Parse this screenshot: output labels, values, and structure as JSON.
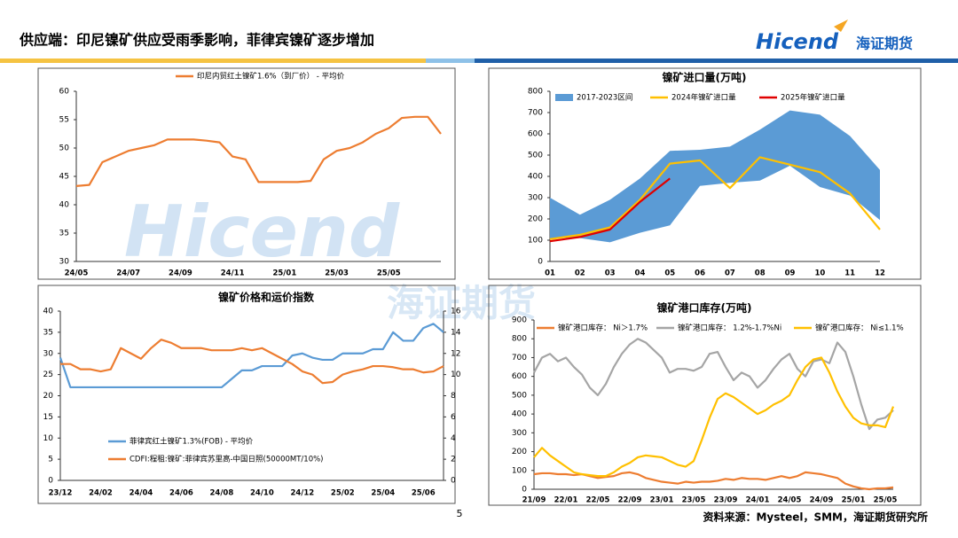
{
  "header": {
    "title": "供应端：印尼镍矿供应受雨季影响，菲律宾镍矿逐步增加"
  },
  "logo": {
    "brand": "Hicend",
    "name": "海证期货"
  },
  "page": "5",
  "source": "资料来源：Mysteel，SMM，海证期货研究所",
  "chart_data": [
    {
      "type": "line",
      "categories": [
        "24/05",
        null,
        null,
        null,
        "24/07",
        null,
        null,
        null,
        "24/09",
        null,
        null,
        null,
        "24/11",
        null,
        null,
        null,
        "25/01",
        null,
        null,
        null,
        "25/03",
        null,
        null,
        null,
        "25/05",
        null,
        null,
        null,
        null
      ],
      "series": [
        {
          "name": "印尼内贸红土镍矿1.6%（到厂价） - 平均价",
          "color": "#ED7D31",
          "values": [
            43.3,
            43.5,
            47.5,
            48.5,
            49.5,
            50,
            50.5,
            51.5,
            51.5,
            51.5,
            51.3,
            51,
            48.5,
            48,
            44,
            44,
            44,
            44,
            44.2,
            48,
            49.5,
            50,
            51,
            52.5,
            53.5,
            55.3,
            55.5,
            55.5,
            52.5
          ]
        }
      ],
      "ylim": [
        30,
        60
      ],
      "yticks": [
        30,
        35,
        40,
        45,
        50,
        55,
        60
      ]
    },
    {
      "type": "line",
      "title": "镍矿进口量(万吨)",
      "categories": [
        "01",
        "02",
        "03",
        "04",
        "05",
        "06",
        "07",
        "08",
        "09",
        "10",
        "11",
        "12"
      ],
      "series": [
        {
          "name": "2017-2023区间",
          "color": "#5B9BD5",
          "low": [
            110,
            110,
            90,
            135,
            170,
            355,
            370,
            380,
            450,
            350,
            310,
            195
          ],
          "high": [
            300,
            220,
            290,
            390,
            520,
            525,
            540,
            620,
            710,
            690,
            590,
            430
          ]
        },
        {
          "name": "2024年镍矿进口量",
          "color": "#FFC000",
          "values": [
            105,
            125,
            160,
            290,
            460,
            475,
            345,
            490,
            455,
            420,
            320,
            150
          ]
        },
        {
          "name": "2025年镍矿进口量",
          "color": "#E00000",
          "values": [
            95,
            115,
            150,
            280,
            390,
            null,
            null,
            null,
            null,
            null,
            null,
            null
          ]
        }
      ],
      "ylim": [
        0,
        800
      ],
      "yticks": [
        0,
        100,
        200,
        300,
        400,
        500,
        600,
        700,
        800
      ]
    },
    {
      "type": "line",
      "title": "镍矿价格和运价指数",
      "categories": [
        "23/12",
        null,
        null,
        null,
        "24/02",
        null,
        null,
        null,
        "24/04",
        null,
        null,
        null,
        "24/06",
        null,
        null,
        null,
        "24/08",
        null,
        null,
        null,
        "24/10",
        null,
        null,
        null,
        "24/12",
        null,
        null,
        null,
        "25/02",
        null,
        null,
        null,
        "25/04",
        null,
        null,
        null,
        "25/06",
        null,
        null
      ],
      "series": [
        {
          "name": "菲律宾红土镍矿1.3%(FOB) - 平均价",
          "color": "#5B9BD5",
          "values": [
            29,
            22,
            22,
            22,
            22,
            22,
            22,
            22,
            22,
            22,
            22,
            22,
            22,
            22,
            22,
            22,
            22,
            24,
            26,
            26,
            27,
            27,
            27,
            29.5,
            30,
            29,
            28.5,
            28.5,
            30,
            30,
            30,
            31,
            31,
            35,
            33,
            33,
            36,
            37,
            35
          ]
        },
        {
          "name": "CDFI:程租:镍矿:菲律宾苏里高-中国日照(50000MT/10%)",
          "color": "#ED7D31",
          "axis": "y2",
          "values": [
            11,
            11,
            10.5,
            10.5,
            10.3,
            10.5,
            12.5,
            12,
            11.5,
            12.5,
            13.3,
            13,
            12.5,
            12.5,
            12.5,
            12.3,
            12.3,
            12.3,
            12.5,
            12.3,
            12.5,
            12,
            11.5,
            11,
            10.3,
            10,
            9.2,
            9.3,
            10,
            10.3,
            10.5,
            10.8,
            10.8,
            10.7,
            10.5,
            10.5,
            10.2,
            10.3,
            10.8
          ]
        }
      ],
      "ylim": [
        0,
        40
      ],
      "yticks": [
        0,
        5,
        10,
        15,
        20,
        25,
        30,
        35,
        40
      ],
      "y2lim": [
        0,
        16
      ],
      "y2ticks": [
        0,
        2,
        4,
        6,
        8,
        10,
        12,
        14,
        16
      ]
    },
    {
      "type": "line",
      "title": "镍矿港口库存(万吨)",
      "categories": [
        "21/09",
        null,
        null,
        null,
        "22/01",
        null,
        null,
        null,
        "22/05",
        null,
        null,
        null,
        "22/09",
        null,
        null,
        null,
        "23/01",
        null,
        null,
        null,
        "23/05",
        null,
        null,
        null,
        "23/09",
        null,
        null,
        null,
        "24/01",
        null,
        null,
        null,
        "24/05",
        null,
        null,
        null,
        "24/09",
        null,
        null,
        null,
        "25/01",
        null,
        null,
        null,
        "25/05",
        null
      ],
      "series": [
        {
          "name": "镍矿港口库存： Ni＞1.7%",
          "color": "#ED7D31",
          "values": [
            80,
            85,
            85,
            80,
            80,
            75,
            80,
            70,
            60,
            65,
            70,
            85,
            90,
            80,
            60,
            50,
            40,
            35,
            30,
            40,
            35,
            40,
            40,
            45,
            55,
            50,
            60,
            55,
            55,
            50,
            60,
            70,
            60,
            70,
            90,
            85,
            80,
            70,
            60,
            30,
            15,
            5,
            0,
            5,
            5,
            10
          ]
        },
        {
          "name": "镍矿港口库存： 1.2%-1.7%Ni",
          "color": "#A5A5A5",
          "values": [
            620,
            700,
            720,
            680,
            700,
            650,
            610,
            540,
            500,
            560,
            650,
            720,
            770,
            800,
            780,
            740,
            700,
            620,
            640,
            640,
            630,
            650,
            720,
            730,
            650,
            580,
            620,
            600,
            540,
            580,
            640,
            690,
            720,
            640,
            600,
            680,
            690,
            670,
            780,
            730,
            600,
            450,
            320,
            370,
            380,
            420
          ]
        },
        {
          "name": "镍矿港口库存： Ni≤1.1%",
          "color": "#FFC000",
          "values": [
            170,
            220,
            180,
            150,
            120,
            90,
            80,
            75,
            70,
            70,
            90,
            120,
            140,
            170,
            180,
            175,
            170,
            150,
            130,
            120,
            150,
            260,
            380,
            480,
            510,
            490,
            460,
            430,
            400,
            420,
            450,
            470,
            500,
            580,
            650,
            690,
            700,
            620,
            520,
            440,
            380,
            350,
            340,
            340,
            330,
            440
          ]
        }
      ],
      "ylim": [
        0,
        900
      ],
      "yticks": [
        0,
        100,
        200,
        300,
        400,
        500,
        600,
        700,
        800,
        900
      ]
    }
  ]
}
